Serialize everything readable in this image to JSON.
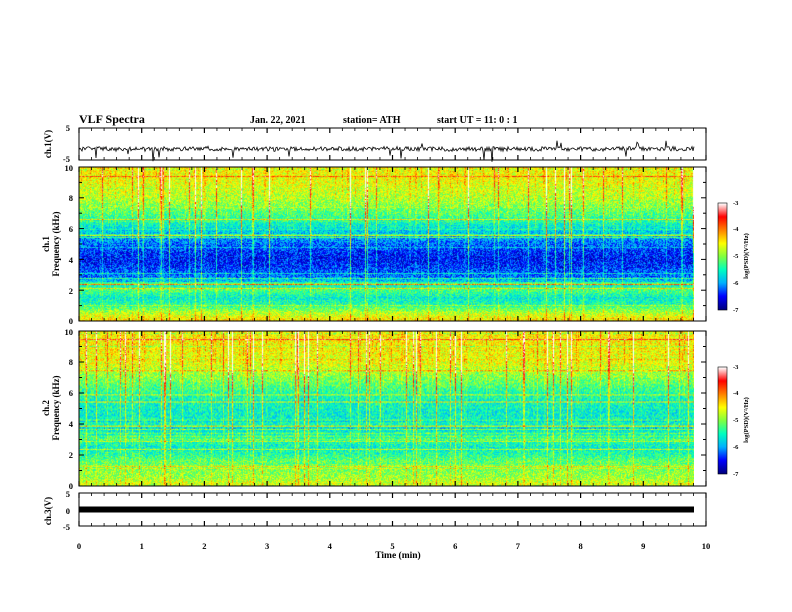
{
  "header": {
    "title": "VLF Spectra",
    "date": "Jan. 22, 2021",
    "station": "station= ATH",
    "start": "start  UT =   11: 0  : 1"
  },
  "chart_data": [
    {
      "type": "line",
      "panel": "ch1-waveform",
      "ylabel": "ch.1(V)",
      "ylim": [
        -5,
        5
      ],
      "yticks": [
        "5",
        "-5"
      ],
      "color": "#000000",
      "x": [
        0,
        1,
        2,
        3,
        4,
        5,
        6,
        7,
        8,
        9,
        9.8
      ],
      "y": [
        -1.5,
        -1.6,
        -1.4,
        -1.6,
        -1.5,
        -1.5,
        -1.6,
        -1.5,
        -1.6,
        -1.4,
        -1.5
      ]
    },
    {
      "type": "heatmap",
      "panel": "ch1-spectrogram",
      "ylabel": "Frequency (kHz)",
      "ylabel2": "ch.1",
      "ylim": [
        0,
        10
      ],
      "yticks": [
        "0",
        "2",
        "4",
        "6",
        "8",
        "10"
      ],
      "colorbar": {
        "label": "log(PSD)(V²/Hz)",
        "range": [
          -7,
          -3
        ],
        "ticks": [
          "-3",
          "-4",
          "-5",
          "-6",
          "-7"
        ],
        "stops": [
          "#00007f",
          "#0000ff",
          "#00b0ff",
          "#00ffc0",
          "#80ff40",
          "#ffff00",
          "#ff8000",
          "#ff0000",
          "#ffffff"
        ]
      },
      "x_range_min": [
        0,
        9.8
      ],
      "profile_khz": [
        0,
        0.5,
        1,
        1.5,
        2,
        2.5,
        3,
        3.5,
        4,
        4.5,
        5,
        6,
        7,
        8,
        9,
        10
      ],
      "profile_log_psd": [
        -4.4,
        -4.8,
        -5.4,
        -5.6,
        -5.2,
        -5.8,
        -6.2,
        -6.4,
        -6.5,
        -6.4,
        -6.2,
        -5.7,
        -5.2,
        -4.8,
        -4.6,
        -4.5
      ]
    },
    {
      "type": "heatmap",
      "panel": "ch2-spectrogram",
      "ylabel": "Frequency (kHz)",
      "ylabel2": "ch.2",
      "ylim": [
        0,
        10
      ],
      "yticks": [
        "0",
        "2",
        "4",
        "6",
        "8",
        "10"
      ],
      "colorbar": {
        "label": "log(PSD)(V²/Hz)",
        "range": [
          -7,
          -3
        ],
        "ticks": [
          "-3",
          "-4",
          "-5",
          "-6",
          "-7"
        ],
        "stops": [
          "#00007f",
          "#0000ff",
          "#00b0ff",
          "#00ffc0",
          "#80ff40",
          "#ffff00",
          "#ff8000",
          "#ff0000",
          "#ffffff"
        ]
      },
      "x_range_min": [
        0,
        9.8
      ],
      "profile_khz": [
        0,
        0.5,
        1,
        1.5,
        2,
        2.5,
        3,
        3.5,
        4,
        4.5,
        5,
        6,
        7,
        8,
        9,
        10
      ],
      "profile_log_psd": [
        -4.6,
        -4.9,
        -5.0,
        -5.1,
        -5.4,
        -5.6,
        -5.3,
        -5.6,
        -5.5,
        -5.6,
        -5.6,
        -5.4,
        -5.0,
        -4.6,
        -4.5,
        -4.5
      ]
    },
    {
      "type": "line",
      "panel": "ch3-waveform",
      "ylabel": "ch.3(V)",
      "ylim": [
        -5,
        5
      ],
      "yticks": [
        "5",
        "0",
        "-5"
      ],
      "color": "#000000",
      "x": [
        0,
        9.8
      ],
      "y": [
        0,
        0
      ]
    }
  ],
  "xaxis": {
    "label": "Time  (min)",
    "range": [
      0,
      10
    ],
    "ticks": [
      "0",
      "1",
      "2",
      "3",
      "4",
      "5",
      "6",
      "7",
      "8",
      "9",
      "10"
    ]
  }
}
